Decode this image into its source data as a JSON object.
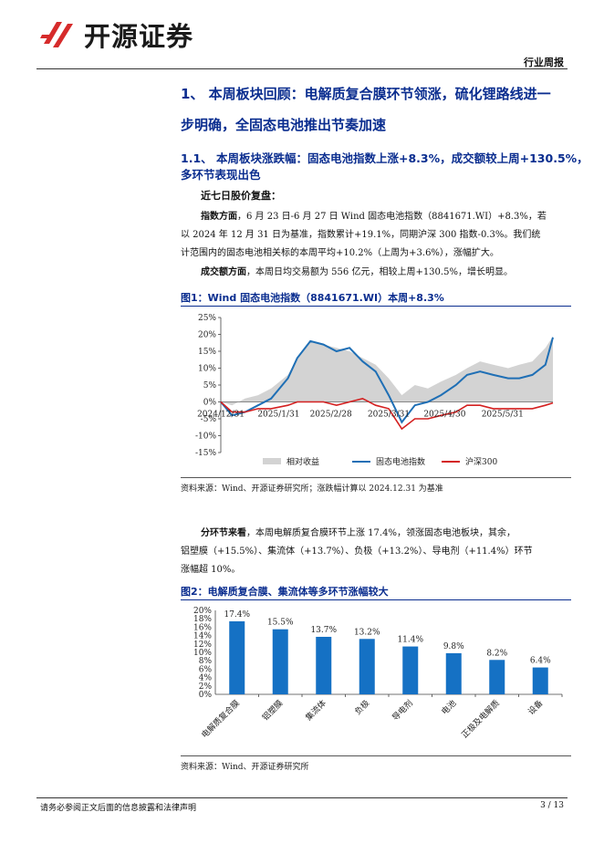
{
  "header": {
    "brand": "开源证券",
    "doc_type": "行业周报",
    "logo_color": "#d62b2b"
  },
  "section1": {
    "heading_line1": "1、 本周板块回顾：电解质复合膜环节领涨，硫化锂路线进一",
    "heading_line2": "步明确，全固态电池推出节奏加速"
  },
  "section11": {
    "heading_line1": "1.1、 本周板块涨跌幅：固态电池指数上涨+8.3%，成交额较上周+130.5%，",
    "heading_line2": "多环节表现出色"
  },
  "recap": {
    "title": "近七日股价复盘：",
    "index_bold": "指数方面",
    "index_line1": "，6 月 23 日-6 月 27 日 Wind 固态电池指数（8841671.WI）+8.3%，若",
    "index_line2": "以 2024 年 12 月 31 日为基准，指数累计+19.1%，同期沪深 300 指数-0.3%。我们统",
    "index_line3": "计范围内的固态电池相关标的本周平均+10.2%（上周为+3.6%），涨幅扩大。",
    "volume_bold": "成交额方面",
    "volume_text": "，本周日均交易额为 556 亿元，相较上周+130.5%，增长明显。"
  },
  "figure1": {
    "title": "图1：Wind 固态电池指数（8841671.WI）本周+8.3%",
    "source": "资料来源：Wind、开源证券研究所；涨跌幅计算以 2024.12.31 为基准"
  },
  "segments": {
    "bold": "分环节来看",
    "line1": "，本周电解质复合膜环节上涨 17.4%，领涨固态电池板块，其余，",
    "line2": "铝塑膜（+15.5%）、集流体（+13.7%）、负极（+13.2%）、导电剂（+11.4%）环节",
    "line3": "涨幅超 10%。"
  },
  "figure2": {
    "title": "图2：电解质复合膜、集流体等多环节涨幅较大",
    "source": "资料来源：Wind、开源证券研究所"
  },
  "footer": {
    "disclaimer": "请务必参阅正文后面的信息披露和法律声明",
    "page": "3 / 13"
  },
  "chart_data": [
    {
      "type": "line",
      "title": "",
      "y_ticks": [
        "25%",
        "20%",
        "15%",
        "10%",
        "5%",
        "0%",
        "-5%",
        "-10%",
        "-15%"
      ],
      "ylim": [
        -15,
        25
      ],
      "x_ticks": [
        "2024/12/31",
        "2025/1/31",
        "2025/2/28",
        "2025/3/31",
        "2025/4/30",
        "2025/5/31"
      ],
      "legend_position": "bottom",
      "series": [
        {
          "name": "相对收益",
          "kind": "area",
          "color": "#d3d3d3",
          "x": [
            "2024/12/31",
            "2025/1/6",
            "2025/1/13",
            "2025/1/20",
            "2025/1/27",
            "2025/2/5",
            "2025/2/10",
            "2025/2/17",
            "2025/2/24",
            "2025/3/3",
            "2025/3/10",
            "2025/3/17",
            "2025/3/24",
            "2025/3/31",
            "2025/4/7",
            "2025/4/14",
            "2025/4/21",
            "2025/4/28",
            "2025/5/6",
            "2025/5/12",
            "2025/5/19",
            "2025/5/26",
            "2025/6/3",
            "2025/6/9",
            "2025/6/16",
            "2025/6/23",
            "2025/6/27"
          ],
          "y": [
            0,
            -1,
            1,
            2,
            4,
            8,
            13,
            18,
            17,
            16,
            15,
            13,
            11,
            7,
            2,
            5,
            4,
            6,
            8,
            10,
            12,
            11,
            10,
            11,
            12,
            16,
            19.4
          ]
        },
        {
          "name": "固态电池指数",
          "kind": "line",
          "color": "#1f6fb5",
          "x": [
            "2024/12/31",
            "2025/1/6",
            "2025/1/13",
            "2025/1/20",
            "2025/1/27",
            "2025/2/5",
            "2025/2/10",
            "2025/2/17",
            "2025/2/24",
            "2025/3/3",
            "2025/3/10",
            "2025/3/17",
            "2025/3/24",
            "2025/3/31",
            "2025/4/7",
            "2025/4/14",
            "2025/4/21",
            "2025/4/28",
            "2025/5/6",
            "2025/5/12",
            "2025/5/19",
            "2025/5/26",
            "2025/6/3",
            "2025/6/9",
            "2025/6/16",
            "2025/6/23",
            "2025/6/27"
          ],
          "y": [
            0,
            -4,
            -3,
            -1,
            1,
            7,
            13,
            18,
            17,
            15,
            16,
            12,
            9,
            2,
            -6,
            -1,
            0,
            2,
            5,
            8,
            9,
            8,
            7,
            7,
            8,
            11,
            19.1
          ]
        },
        {
          "name": "沪深300",
          "kind": "line",
          "color": "#d42020",
          "x": [
            "2024/12/31",
            "2025/1/6",
            "2025/1/13",
            "2025/1/20",
            "2025/1/27",
            "2025/2/5",
            "2025/2/10",
            "2025/2/17",
            "2025/2/24",
            "2025/3/3",
            "2025/3/10",
            "2025/3/17",
            "2025/3/24",
            "2025/3/31",
            "2025/4/7",
            "2025/4/14",
            "2025/4/21",
            "2025/4/28",
            "2025/5/6",
            "2025/5/12",
            "2025/5/19",
            "2025/5/26",
            "2025/6/3",
            "2025/6/9",
            "2025/6/16",
            "2025/6/23",
            "2025/6/27"
          ],
          "y": [
            0,
            -3,
            -3,
            -2,
            -2,
            -1,
            0,
            0,
            0,
            -1,
            0,
            1,
            -1,
            -2,
            -8,
            -5,
            -5,
            -4,
            -3,
            -1,
            -1,
            -2,
            -2,
            -2,
            -2,
            -1,
            -0.3
          ]
        }
      ]
    },
    {
      "type": "bar",
      "title": "",
      "categories": [
        "电解质复合膜",
        "铝塑膜",
        "集流体",
        "负极",
        "导电剂",
        "电池",
        "正极及电解质",
        "设备"
      ],
      "values": [
        17.4,
        15.5,
        13.7,
        13.2,
        11.4,
        9.8,
        8.2,
        6.4
      ],
      "data_labels": [
        "17.4%",
        "15.5%",
        "13.7%",
        "13.2%",
        "11.4%",
        "9.8%",
        "8.2%",
        "6.4%"
      ],
      "y_ticks": [
        "20%",
        "18%",
        "16%",
        "14%",
        "12%",
        "10%",
        "8%",
        "6%",
        "4%",
        "2%",
        "0%"
      ],
      "ylim": [
        0,
        20
      ],
      "color": "#1571c4"
    }
  ]
}
